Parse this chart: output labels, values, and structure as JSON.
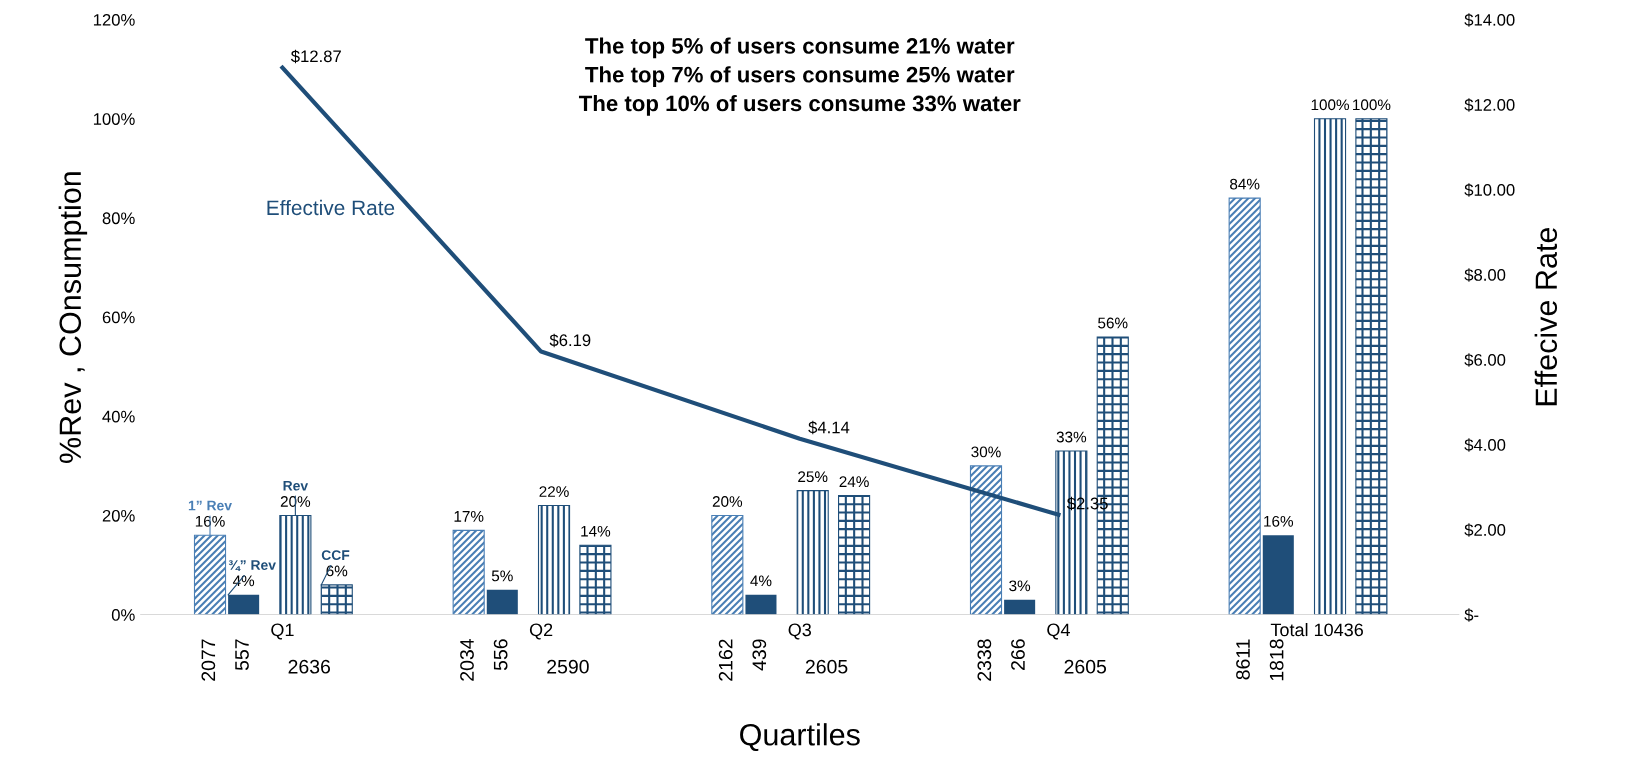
{
  "chart_data": {
    "type": "bar",
    "xlabel": "Quartiles",
    "ylabel": "%Rev , COnsumption",
    "y2label": "Effecive Rate",
    "categories": [
      "Q1",
      "Q2",
      "Q3",
      "Q4",
      "Total 10436"
    ],
    "series": [
      {
        "name": "1” Rev",
        "color": "#4a7fb5",
        "values": [
          16,
          17,
          20,
          30,
          84
        ],
        "value_labels": [
          "16%",
          "17%",
          "20%",
          "30%",
          "84%"
        ]
      },
      {
        "name": "¾” Rev",
        "color": "#1f4e79",
        "values": [
          4,
          5,
          4,
          3,
          16
        ],
        "value_labels": [
          "4%",
          "5%",
          "4%",
          "3%",
          "16%"
        ]
      },
      {
        "name": "Rev",
        "color": "#1f4e79",
        "values": [
          20,
          22,
          25,
          33,
          100
        ],
        "value_labels": [
          "20%",
          "22%",
          "25%",
          "33%",
          "100%"
        ]
      },
      {
        "name": "CCF",
        "color": "#1f4e79",
        "values": [
          6,
          14,
          24,
          56,
          100
        ],
        "value_labels": [
          "6%",
          "14%",
          "24%",
          "56%",
          "100%"
        ]
      },
      {
        "name": "Effective Rate",
        "type": "line",
        "axis": "y2",
        "color": "#1f4e79",
        "values": [
          12.87,
          6.19,
          4.14,
          2.35,
          null
        ],
        "value_labels": [
          "$12.87",
          "$6.19",
          "$4.14",
          "$2.35",
          null
        ]
      }
    ],
    "ylim": [
      0,
      120
    ],
    "yticks": [
      {
        "value": 0,
        "label": "0%"
      },
      {
        "value": 20,
        "label": "20%"
      },
      {
        "value": 40,
        "label": "40%"
      },
      {
        "value": 60,
        "label": "60%"
      },
      {
        "value": 80,
        "label": "80%"
      },
      {
        "value": 100,
        "label": "100%"
      },
      {
        "value": 120,
        "label": "120%"
      }
    ],
    "y2lim": [
      0,
      14
    ],
    "y2ticks": [
      {
        "value": 0,
        "label": "$-"
      },
      {
        "value": 2,
        "label": "$2.00"
      },
      {
        "value": 4,
        "label": "$4.00"
      },
      {
        "value": 6,
        "label": "$6.00"
      },
      {
        "value": 8,
        "label": "$8.00"
      },
      {
        "value": 10,
        "label": "$10.00"
      },
      {
        "value": 12,
        "label": "$12.00"
      },
      {
        "value": 14,
        "label": "$14.00"
      }
    ],
    "grid": false,
    "legend": false,
    "annotations": [
      "The top 5% of users consume 21% water\nThe top 7% of users consume 25% water\nThe top 10% of users consume 33% water",
      "2077",
      "557",
      "2636",
      "2034",
      "556",
      "2590",
      "2162",
      "439",
      "2605",
      "2338",
      "266",
      "2605",
      "8611",
      "1818"
    ]
  }
}
